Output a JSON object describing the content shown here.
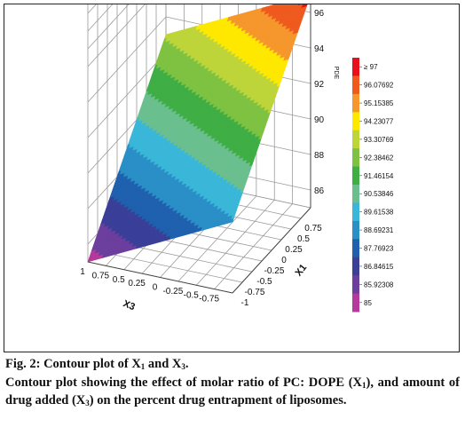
{
  "chart_data": {
    "type": "surface",
    "xaxis": {
      "label": "X3",
      "ticks": [
        "1",
        "0.75",
        "0.5",
        "0.25",
        "0",
        "-0.25",
        "-0.5",
        "-0.75"
      ],
      "range": [
        -1,
        1
      ]
    },
    "yaxis": {
      "label": "X1",
      "ticks": [
        "-1",
        "-0.75",
        "-0.5",
        "-0.25",
        "0",
        "0.25",
        "0.5",
        "0.75"
      ],
      "range": [
        -1,
        1
      ]
    },
    "zaxis": {
      "label": "PDE",
      "ticks": [
        "86",
        "88",
        "90",
        "92",
        "94",
        "96"
      ],
      "range": [
        85,
        97
      ]
    },
    "surface": {
      "corners": [
        {
          "x3": 1,
          "x1": -1,
          "pde": 85.0
        },
        {
          "x3": -1,
          "x1": -1,
          "pde": 89.0
        },
        {
          "x3": -1,
          "x1": 1,
          "pde": 97.0
        },
        {
          "x3": 1,
          "x1": 1,
          "pde": 93.0
        }
      ]
    },
    "colorbar": {
      "labels": [
        "≥ 97",
        "96.07692",
        "95.15385",
        "94.23077",
        "93.30769",
        "92.38462",
        "91.46154",
        "90.53846",
        "89.61538",
        "88.69231",
        "87.76923",
        "86.84615",
        "85.92308",
        "85"
      ],
      "colors": [
        "#e8101a",
        "#ef5a1f",
        "#f5972c",
        "#ffe800",
        "#bed53a",
        "#7fc242",
        "#3fae45",
        "#6bbf8f",
        "#3ab7d8",
        "#2a8fc6",
        "#1f61ae",
        "#3a3f98",
        "#6c3e9d",
        "#b43a9b"
      ]
    },
    "grid": true
  },
  "caption": {
    "fig": "Fig. 2: Contour plot of X",
    "fig_s1": "1",
    "fig_mid": " and X",
    "fig_s2": "3",
    "fig_end": ".",
    "body_1": "Contour plot showing the effect of molar ratio of PC: DOPE (X",
    "body_s1": "1",
    "body_2": "), and amount of drug added (X",
    "body_s2": "3",
    "body_3": ") on the percent drug entrapment of liposomes."
  }
}
